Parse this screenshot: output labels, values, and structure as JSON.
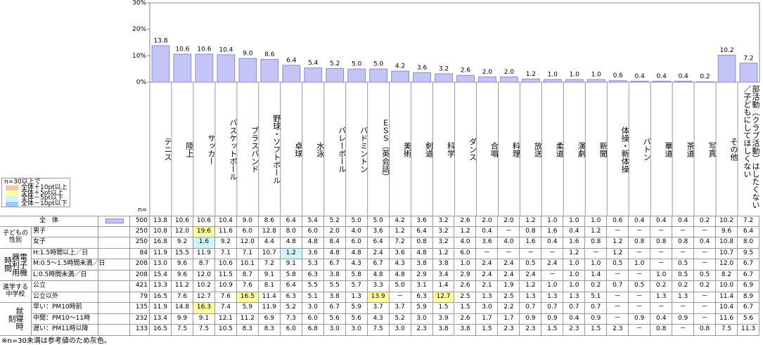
{
  "chart_data": {
    "type": "bar",
    "categories": [
      "テニス",
      "陸上",
      "サッカー",
      "バスケットボール",
      "ブラスバンド",
      "野球・ソフトボール",
      "卓球",
      "水泳",
      "バレーボール",
      "バドミントン",
      "ＥＳＳ（英会話）",
      "美術",
      "剣道",
      "科学",
      "ダンス",
      "合唱",
      "料理",
      "放送",
      "柔道",
      "演劇",
      "新聞",
      "体操・新体操",
      "バトン",
      "華道",
      "茶道",
      "写真",
      "その他",
      "部活動（クラブ活動）はしたくない／子どもにしてほしくない"
    ],
    "values": [
      13.8,
      10.6,
      10.6,
      10.4,
      9.0,
      8.6,
      6.4,
      5.4,
      5.2,
      5.0,
      5.0,
      4.2,
      3.6,
      3.2,
      2.6,
      2.0,
      2.0,
      1.2,
      1.0,
      1.0,
      1.0,
      0.6,
      0.4,
      0.4,
      0.4,
      0.2,
      10.2,
      7.2
    ],
    "value_labels": [
      "13.8",
      "10.6",
      "10.6",
      "10.4",
      "9.0",
      "8.6",
      "6.4",
      "5.4",
      "5.2",
      "5.0",
      "5.0",
      "4.2",
      "3.6",
      "3.2",
      "2.6",
      "2.0",
      "2.0",
      "1.2",
      "1.0",
      "1.0",
      "1.0",
      "0.6",
      "0.4",
      "0.4",
      "0.4",
      "0.2",
      "10.2",
      "7.2"
    ],
    "color": "#c4c4f6",
    "ylim": [
      0,
      30
    ],
    "yticks": [
      {
        "value": 0,
        "label": "0%"
      },
      {
        "value": 10,
        "label": "10%"
      },
      {
        "value": 20,
        "label": "20%"
      },
      {
        "value": 30,
        "label": "30%"
      }
    ]
  },
  "table": {
    "n_label": "n=",
    "total": {
      "label": "全　体",
      "n": "500"
    },
    "groups": [
      {
        "label": "子どもの性別",
        "rows": [
          {
            "label": "男子",
            "n": "250",
            "values": [
              "10.8",
              "12.0",
              "19.6",
              "11.6",
              "6.0",
              "12.8",
              "8.0",
              "6.0",
              "2.0",
              "4.0",
              "3.6",
              "1.2",
              "6.4",
              "3.2",
              "1.2",
              "0.4",
              "－",
              "0.8",
              "1.6",
              "0.4",
              "1.2",
              "－",
              "－",
              "－",
              "－",
              "－",
              "9.6",
              "6.4"
            ]
          },
          {
            "label": "女子",
            "n": "250",
            "values": [
              "16.8",
              "9.2",
              "1.6",
              "9.2",
              "12.0",
              "4.4",
              "4.8",
              "4.8",
              "8.4",
              "6.0",
              "6.4",
              "7.2",
              "0.8",
              "3.2",
              "4.0",
              "3.6",
              "4.0",
              "1.6",
              "0.4",
              "1.6",
              "0.8",
              "1.2",
              "0.8",
              "0.8",
              "0.8",
              "0.4",
              "10.8",
              "8.0"
            ]
          }
        ]
      },
      {
        "label": "電子機器利用時間",
        "rows": [
          {
            "label": "H:1.5時間以上／日",
            "n": "84",
            "values": [
              "11.9",
              "15.5",
              "11.9",
              "7.1",
              "7.1",
              "10.7",
              "1.2",
              "3.6",
              "4.8",
              "4.8",
              "2.4",
              "3.6",
              "4.8",
              "1.2",
              "6.0",
              "－",
              "－",
              "－",
              "－",
              "1.2",
              "－",
              "1.2",
              "－",
              "－",
              "－",
              "－",
              "10.7",
              "9.5"
            ]
          },
          {
            "label": "M:0.5～1.5時間未満／日",
            "n": "208",
            "values": [
              "13.0",
              "9.6",
              "8.7",
              "10.6",
              "10.1",
              "7.2",
              "9.1",
              "5.3",
              "6.7",
              "4.3",
              "6.7",
              "4.3",
              "3.8",
              "3.8",
              "1.0",
              "2.4",
              "2.4",
              "0.5",
              "2.4",
              "1.0",
              "1.0",
              "0.5",
              "1.0",
              "－",
              "0.5",
              "－",
              "12.0",
              "6.7"
            ]
          },
          {
            "label": "L:0.5時間未満／日",
            "n": "208",
            "values": [
              "15.4",
              "9.6",
              "12.0",
              "11.5",
              "8.7",
              "9.1",
              "5.8",
              "6.3",
              "3.8",
              "5.8",
              "4.8",
              "4.8",
              "2.9",
              "3.4",
              "2.9",
              "2.4",
              "2.4",
              "2.4",
              "－",
              "1.0",
              "1.4",
              "－",
              "－",
              "1.0",
              "0.5",
              "0.5",
              "8.2",
              "6.7"
            ]
          }
        ]
      },
      {
        "label": "進学する中学校",
        "rows": [
          {
            "label": "公立",
            "n": "421",
            "values": [
              "13.3",
              "11.2",
              "10.2",
              "10.9",
              "7.6",
              "8.1",
              "6.4",
              "5.5",
              "5.5",
              "5.7",
              "3.3",
              "5.0",
              "3.1",
              "1.4",
              "2.6",
              "2.1",
              "1.9",
              "1.2",
              "1.0",
              "1.0",
              "0.2",
              "0.7",
              "0.5",
              "0.2",
              "0.2",
              "0.2",
              "10.0",
              "6.9"
            ]
          },
          {
            "label": "公立以外",
            "n": "79",
            "values": [
              "16.5",
              "7.6",
              "12.7",
              "7.6",
              "16.5",
              "11.4",
              "6.3",
              "5.1",
              "3.8",
              "1.3",
              "13.9",
              "－",
              "6.3",
              "12.7",
              "2.5",
              "1.3",
              "2.5",
              "1.3",
              "1.3",
              "1.3",
              "5.1",
              "－",
              "－",
              "1.3",
              "1.3",
              "－",
              "11.4",
              "8.9"
            ]
          }
        ]
      },
      {
        "label": "就寝時刻",
        "rows": [
          {
            "label": "早い：PM10時前",
            "n": "135",
            "values": [
              "11.9",
              "14.8",
              "16.3",
              "7.4",
              "5.9",
              "11.9",
              "5.2",
              "3.0",
              "6.7",
              "5.9",
              "3.7",
              "3.7",
              "5.9",
              "1.5",
              "1.5",
              "3.0",
              "2.2",
              "0.7",
              "0.7",
              "0.7",
              "0.7",
              "－",
              "－",
              "－",
              "－",
              "－",
              "10.4",
              "6.7"
            ]
          },
          {
            "label": "中間：PM10～11時",
            "n": "232",
            "values": [
              "13.4",
              "9.9",
              "9.1",
              "12.1",
              "11.2",
              "6.9",
              "7.3",
              "6.0",
              "5.6",
              "5.6",
              "4.3",
              "5.2",
              "3.0",
              "3.9",
              "2.6",
              "1.7",
              "1.7",
              "0.9",
              "0.9",
              "0.4",
              "0.9",
              "－",
              "0.9",
              "0.4",
              "0.9",
              "－",
              "11.6",
              "5.6"
            ]
          },
          {
            "label": "遅い：PM11時以降",
            "n": "133",
            "values": [
              "16.5",
              "7.5",
              "7.5",
              "10.5",
              "8.3",
              "8.3",
              "6.0",
              "6.8",
              "3.0",
              "3.0",
              "7.5",
              "3.0",
              "2.3",
              "3.8",
              "3.8",
              "1.5",
              "2.3",
              "2.3",
              "1.5",
              "2.3",
              "1.5",
              "2.3",
              "－",
              "0.8",
              "－",
              "0.8",
              "7.5",
              "11.3"
            ]
          }
        ]
      }
    ]
  },
  "legend": {
    "title": "n=30以上で",
    "items": [
      {
        "label": "全体＋10pt以上",
        "color": "#f8c79a"
      },
      {
        "label": "全体＋5pt以上",
        "color": "#ffff99"
      },
      {
        "label": "全体－5pt以下",
        "color": "#ccf6ff"
      },
      {
        "label": "全体－10pt以下",
        "color": "#99ccff"
      }
    ]
  },
  "footnote": "※n=30未満は参考値のため灰色。"
}
